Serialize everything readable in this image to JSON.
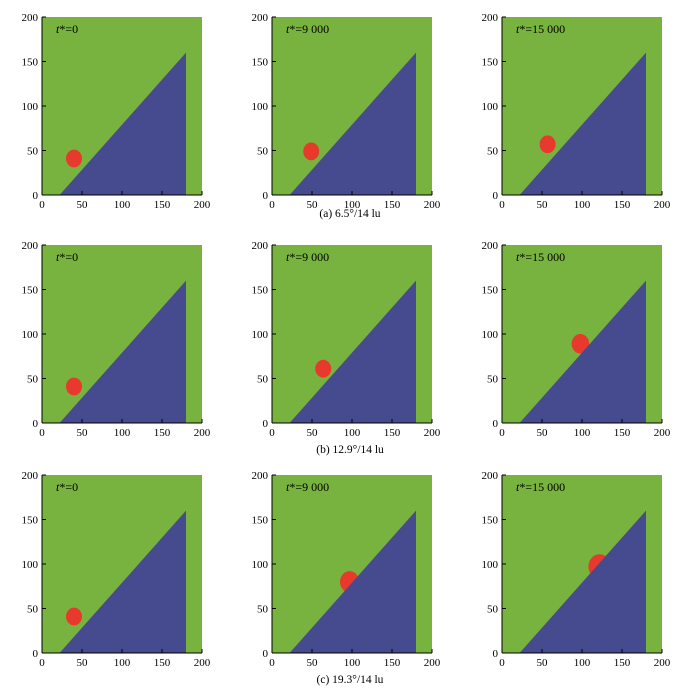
{
  "figure": {
    "rows": [
      {
        "caption": "(a) 6.5°/14 lu"
      },
      {
        "caption": "(b) 12.9°/14 lu"
      },
      {
        "caption": "(c) 19.3°/14 lu"
      }
    ],
    "columns": [
      {
        "time_var": "t*",
        "time_value": "=0"
      },
      {
        "time_var": "t*",
        "time_value": "=9 000"
      },
      {
        "time_var": "t*",
        "time_value": "=15 000"
      }
    ]
  },
  "chart_data": {
    "type": "heatmap",
    "xlim": [
      0,
      200
    ],
    "ylim": [
      0,
      200
    ],
    "x_ticks": [
      "0",
      "50",
      "100",
      "150",
      "200"
    ],
    "y_ticks": [
      "0",
      "50",
      "100",
      "150",
      "200"
    ],
    "grid": false,
    "colors": {
      "fluid": "#77b33e",
      "solid": "#464a8e",
      "droplet": "#e8392d"
    },
    "solid_wedge": [
      [
        22,
        0
      ],
      [
        180,
        0
      ],
      [
        180,
        160
      ]
    ],
    "panels": [
      {
        "row": 0,
        "col": 0,
        "droplet": {
          "cx": 40,
          "cy": 41,
          "r": 10
        }
      },
      {
        "row": 0,
        "col": 1,
        "droplet": {
          "cx": 49,
          "cy": 49,
          "r": 10
        }
      },
      {
        "row": 0,
        "col": 2,
        "droplet": {
          "cx": 57,
          "cy": 57,
          "r": 10
        }
      },
      {
        "row": 1,
        "col": 0,
        "droplet": {
          "cx": 40,
          "cy": 41,
          "r": 10
        }
      },
      {
        "row": 1,
        "col": 1,
        "droplet": {
          "cx": 64,
          "cy": 61,
          "r": 10
        }
      },
      {
        "row": 1,
        "col": 2,
        "droplet": {
          "cx": 98,
          "cy": 89,
          "r": 11
        }
      },
      {
        "row": 2,
        "col": 0,
        "droplet": {
          "cx": 40,
          "cy": 41,
          "r": 10
        }
      },
      {
        "row": 2,
        "col": 1,
        "droplet": {
          "cx": 97,
          "cy": 80,
          "r": 12
        }
      },
      {
        "row": 2,
        "col": 2,
        "droplet": {
          "cx": 122,
          "cy": 97,
          "r": 14
        }
      }
    ]
  }
}
